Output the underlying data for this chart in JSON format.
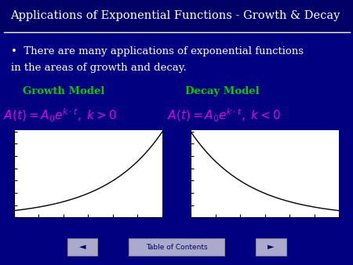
{
  "bg_color": "#000080",
  "title": "Applications of Exponential Functions - Growth & Decay",
  "title_color": "#FFFFFF",
  "title_fontsize": 10.5,
  "bullet_line1": "•  There are many applications of exponential functions",
  "bullet_line2": "in the areas of growth and decay.",
  "bullet_color": "#FFFFFF",
  "bullet_fontsize": 9.5,
  "growth_label": "Growth Model",
  "decay_label": "Decay Model",
  "model_label_color": "#00CC00",
  "model_label_fontsize": 9.5,
  "formula_color": "#DD00DD",
  "formula_fontsize": 11,
  "toc_text": "Table of Contents",
  "toc_color": "#000066",
  "toc_bg": "#AAAACC",
  "plot_bg": "#FFFFFF",
  "curve_color": "#000000",
  "nav_bg": "#AAAACC",
  "nav_color": "#000066"
}
